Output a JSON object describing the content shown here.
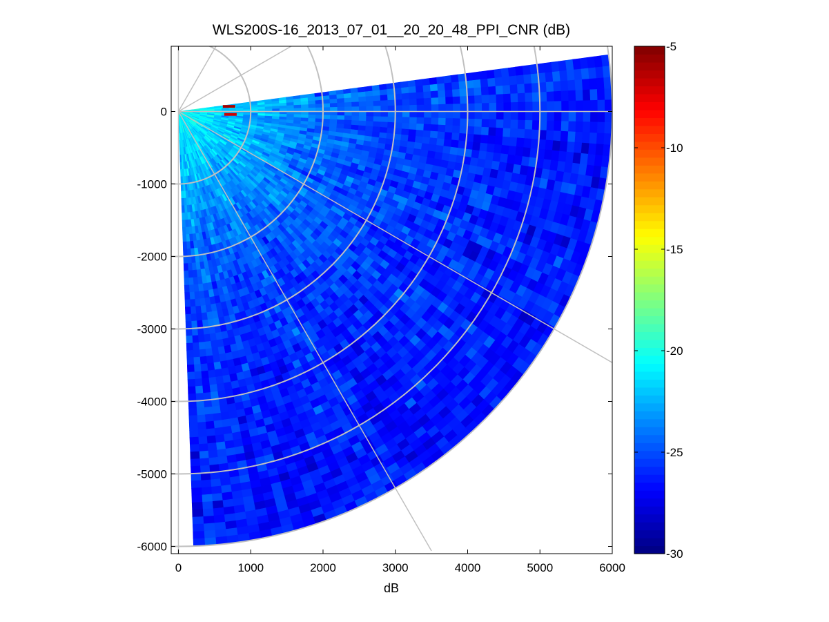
{
  "chart_data": {
    "type": "heatmap",
    "subtype": "polar-ppi",
    "title": "WLS200S-16_2013_07_01__20_20_48_PPI_CNR (dB)",
    "xlabel": "dB",
    "ylabel": "",
    "xlim": [
      -100,
      6000
    ],
    "ylim": [
      -6100,
      900
    ],
    "xticks": [
      0,
      1000,
      2000,
      3000,
      4000,
      5000,
      6000
    ],
    "yticks": [
      0,
      -1000,
      -2000,
      -3000,
      -4000,
      -5000,
      -6000
    ],
    "grid": "polar",
    "polar_grid": {
      "range_rings": [
        1000,
        2000,
        3000,
        4000,
        5000,
        6000
      ],
      "spokes_deg": [
        90,
        60,
        30,
        0,
        -30,
        -60,
        -90
      ]
    },
    "sector": {
      "azimuth_start_deg": 7.5,
      "azimuth_end_deg": -88,
      "min_range": 0,
      "max_range": 6000
    },
    "value_by_range": {
      "range": [
        0,
        500,
        1000,
        1500,
        2000,
        3000,
        4000,
        5000,
        6000
      ],
      "cnr_db": [
        -20.5,
        -21.5,
        -22.5,
        -23.5,
        -24.5,
        -25.5,
        -26,
        -26.3,
        -26.5
      ]
    },
    "features": [
      {
        "x": 700,
        "y": 70,
        "value": -6
      },
      {
        "x": 720,
        "y": -40,
        "value": -7
      }
    ],
    "colorbar": {
      "colormap": "jet",
      "clim": [
        -30,
        -5
      ],
      "ticks": [
        -5,
        -10,
        -15,
        -20,
        -25,
        -30
      ]
    }
  }
}
